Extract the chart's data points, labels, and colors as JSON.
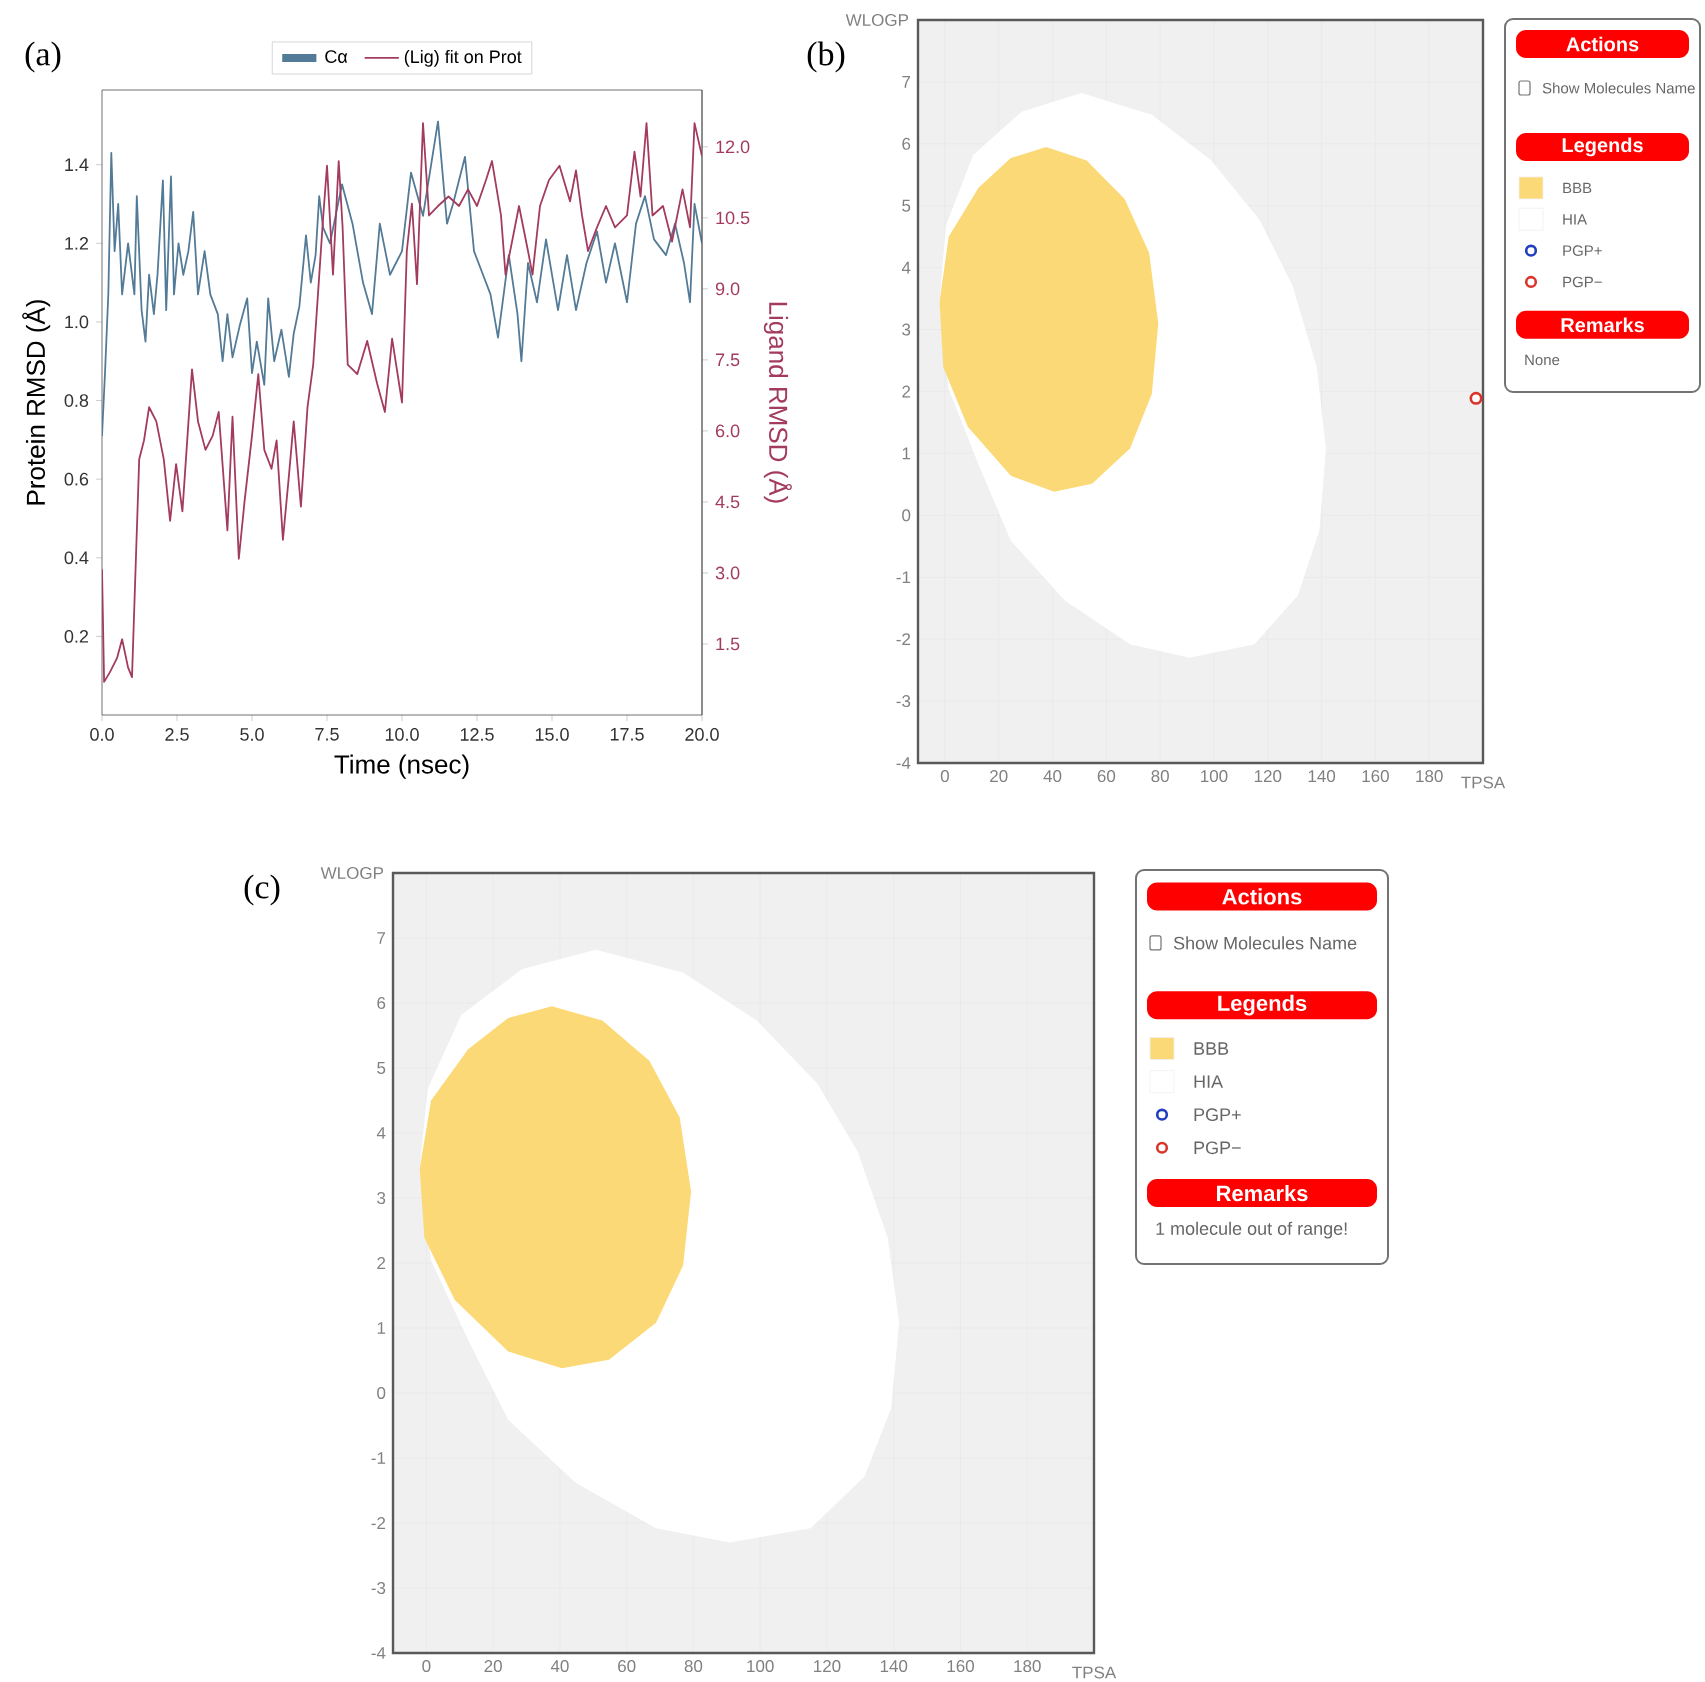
{
  "chart_data": [
    {
      "type": "line",
      "title": "(a)",
      "xlabel": "Time (nsec)",
      "ylabel": "Protein RMSD (Å)",
      "y2label": "Ligand RMSD (Å)",
      "legend": "top",
      "xlim": [
        0,
        20
      ],
      "ylim": [
        0,
        1.59
      ],
      "y2lim": [
        0,
        13.2
      ],
      "xticks": [
        {
          "value": 0,
          "label": "0.0"
        },
        2.5,
        {
          "value": 5,
          "label": "5.0"
        },
        7.5,
        {
          "value": 10,
          "label": "10.0"
        },
        12.5,
        {
          "value": 15,
          "label": "15.0"
        },
        17.5,
        {
          "value": 20,
          "label": "20.0"
        }
      ],
      "yticks": [
        0.2,
        0.4,
        0.6,
        0.8,
        {
          "value": 1,
          "label": "1.0"
        },
        1.2,
        1.4
      ],
      "y2ticks": [
        1.5,
        {
          "value": 3,
          "label": "3.0"
        },
        4.5,
        {
          "value": 6,
          "label": "6.0"
        },
        7.5,
        {
          "value": 9,
          "label": "9.0"
        },
        10.5,
        {
          "value": 12,
          "label": "12.0"
        }
      ],
      "series": [
        {
          "name": "Cα",
          "color": "#537b97",
          "x": [
            0,
            0.1,
            0.21,
            0.31,
            0.42,
            0.54,
            0.67,
            0.87,
            1.08,
            1.16,
            1.32,
            1.45,
            1.57,
            1.73,
            1.85,
            2.03,
            2.14,
            2.3,
            2.4,
            2.55,
            2.71,
            2.88,
            3.04,
            3.2,
            3.42,
            3.61,
            3.86,
            4.02,
            4.18,
            4.35,
            4.59,
            4.84,
            5.0,
            5.16,
            5.41,
            5.54,
            5.74,
            5.98,
            6.23,
            6.39,
            6.58,
            6.8,
            6.96,
            7.12,
            7.24,
            7.37,
            7.6,
            8.0,
            8.35,
            8.7,
            9.0,
            9.26,
            9.6,
            10.0,
            10.3,
            10.7,
            11.2,
            11.5,
            11.7,
            12.1,
            12.4,
            12.7,
            12.95,
            13.2,
            13.56,
            13.85,
            13.98,
            14.2,
            14.5,
            14.8,
            15.2,
            15.5,
            15.8,
            16.15,
            16.5,
            16.8,
            17.1,
            17.5,
            17.8,
            18.1,
            18.4,
            18.8,
            19.1,
            19.4,
            19.6,
            19.75,
            20
          ],
          "values": [
            0.71,
            0.87,
            1.07,
            1.43,
            1.18,
            1.3,
            1.07,
            1.2,
            1.07,
            1.32,
            1.03,
            0.95,
            1.12,
            1.02,
            1.12,
            1.36,
            1.03,
            1.37,
            1.07,
            1.2,
            1.12,
            1.18,
            1.28,
            1.07,
            1.18,
            1.07,
            1.02,
            0.9,
            1.02,
            0.91,
            0.99,
            1.06,
            0.87,
            0.95,
            0.84,
            1.06,
            0.9,
            0.98,
            0.86,
            0.97,
            1.04,
            1.22,
            1.1,
            1.17,
            1.32,
            1.24,
            1.2,
            1.35,
            1.25,
            1.1,
            1.02,
            1.25,
            1.12,
            1.18,
            1.38,
            1.27,
            1.51,
            1.25,
            1.3,
            1.42,
            1.18,
            1.12,
            1.07,
            0.96,
            1.17,
            1.02,
            0.9,
            1.15,
            1.05,
            1.21,
            1.03,
            1.17,
            1.03,
            1.15,
            1.23,
            1.1,
            1.2,
            1.05,
            1.25,
            1.32,
            1.21,
            1.17,
            1.25,
            1.15,
            1.05,
            1.3,
            1.2
          ]
        },
        {
          "name": "(Lig) fit on Prot",
          "color": "#a33b5e",
          "axis": "y2",
          "x": [
            0,
            0.07,
            0.26,
            0.5,
            0.67,
            0.87,
            1.0,
            1.13,
            1.24,
            1.4,
            1.57,
            1.81,
            2.06,
            2.27,
            2.47,
            2.68,
            3.0,
            3.2,
            3.45,
            3.69,
            3.89,
            4.18,
            4.35,
            4.56,
            4.75,
            5.0,
            5.21,
            5.41,
            5.65,
            5.82,
            6.03,
            6.23,
            6.39,
            6.63,
            6.85,
            7.04,
            7.2,
            7.37,
            7.5,
            7.7,
            7.89,
            8.02,
            8.19,
            8.51,
            8.84,
            9.17,
            9.43,
            9.67,
            10.0,
            10.16,
            10.33,
            10.5,
            10.7,
            10.9,
            11.2,
            11.55,
            11.9,
            12.2,
            12.5,
            12.8,
            13.0,
            13.3,
            13.45,
            13.7,
            13.9,
            14.2,
            14.35,
            14.6,
            14.9,
            15.25,
            15.6,
            15.8,
            16.0,
            16.2,
            16.5,
            16.8,
            17.1,
            17.5,
            17.75,
            17.95,
            18.15,
            18.35,
            18.7,
            19.0,
            19.35,
            19.6,
            19.75,
            20
          ],
          "values": [
            3.08,
            0.7,
            0.9,
            1.2,
            1.6,
            1.0,
            0.8,
            3.3,
            5.4,
            5.8,
            6.5,
            6.2,
            5.4,
            4.1,
            5.3,
            4.3,
            7.3,
            6.2,
            5.6,
            5.9,
            6.4,
            3.9,
            6.3,
            3.3,
            4.5,
            5.9,
            7.2,
            5.6,
            5.2,
            5.8,
            3.7,
            5.05,
            6.2,
            4.4,
            6.5,
            7.4,
            8.9,
            10.5,
            11.6,
            9.3,
            11.7,
            10.3,
            7.4,
            7.2,
            7.9,
            7.0,
            6.4,
            7.95,
            6.6,
            9.8,
            10.8,
            9.1,
            12.5,
            10.55,
            10.75,
            10.95,
            10.75,
            11.1,
            10.75,
            11.3,
            11.7,
            10.55,
            9.3,
            10.1,
            10.75,
            9.8,
            9.3,
            10.75,
            11.3,
            11.6,
            10.85,
            11.5,
            10.55,
            9.8,
            10.3,
            10.75,
            10.3,
            10.55,
            11.9,
            10.95,
            12.5,
            10.55,
            10.75,
            10.0,
            11.1,
            10.3,
            12.5,
            11.8
          ]
        }
      ]
    },
    {
      "type": "scatter",
      "title": "(b)",
      "xlabel": "TPSA",
      "ylabel": "WLOGP",
      "legend": "right",
      "legend_title": "Legends",
      "grid": true,
      "xlim": [
        -10,
        200
      ],
      "ylim": [
        -4,
        8
      ],
      "xticks": [
        0,
        20,
        40,
        60,
        80,
        100,
        120,
        140,
        160,
        180
      ],
      "yticks": [
        -4,
        -3,
        -2,
        -1,
        0,
        1,
        2,
        3,
        4,
        5,
        6,
        7
      ],
      "annotations": [
        "Actions",
        "Show Molecules Name",
        "Remarks",
        "None"
      ],
      "series": [
        {
          "name": "BBB",
          "type": "area",
          "color": "#fcd977",
          "x": [
            37.6,
            52.7,
            66.8,
            75.9,
            79.3,
            76.9,
            68.8,
            54.7,
            40.6,
            24.5,
            8.5,
            -0.6,
            -2.0,
            1.4,
            12.5,
            24.5
          ],
          "values": [
            5.95,
            5.73,
            5.11,
            4.24,
            3.1,
            1.96,
            1.08,
            0.51,
            0.38,
            0.64,
            1.43,
            2.39,
            3.45,
            4.5,
            5.29,
            5.77
          ]
        },
        {
          "name": "HIA",
          "type": "area",
          "color": "#ffffff",
          "x": [
            50.7,
            76.9,
            99.0,
            117.1,
            129.2,
            138.2,
            141.6,
            139.2,
            131.2,
            115.1,
            90.9,
            68.8,
            44.7,
            24.5,
            12.5,
            1.4,
            -2.0,
            0.4,
            10.5,
            28.6
          ],
          "values": [
            6.82,
            6.47,
            5.73,
            4.76,
            3.71,
            2.39,
            1.08,
            -0.24,
            -1.29,
            -2.08,
            -2.3,
            -2.08,
            -1.38,
            -0.41,
            0.82,
            2.04,
            3.45,
            4.68,
            5.82,
            6.52
          ]
        },
        {
          "name": "PGP+",
          "color": "#1f3fbf",
          "marker": "circle"
        },
        {
          "name": "PGP−",
          "color": "#d9352b",
          "marker": "circle",
          "x": [
            197.4
          ],
          "values": [
            1.89
          ]
        }
      ]
    },
    {
      "type": "scatter",
      "title": "(c)",
      "xlabel": "TPSA",
      "ylabel": "WLOGP",
      "legend": "right",
      "legend_title": "Legends",
      "grid": true,
      "xlim": [
        -10,
        200
      ],
      "ylim": [
        -4,
        8
      ],
      "xticks": [
        0,
        20,
        40,
        60,
        80,
        100,
        120,
        140,
        160,
        180
      ],
      "yticks": [
        -4,
        -3,
        -2,
        -1,
        0,
        1,
        2,
        3,
        4,
        5,
        6,
        7
      ],
      "annotations": [
        "Actions",
        "Show Molecules Name",
        "Remarks",
        "1 molecule out of range!"
      ],
      "series": [
        {
          "name": "BBB",
          "type": "area",
          "color": "#fcd977",
          "x": [
            37.6,
            52.7,
            66.8,
            75.9,
            79.3,
            76.9,
            68.8,
            54.7,
            40.6,
            24.5,
            8.5,
            -0.6,
            -2.0,
            1.4,
            12.5,
            24.5
          ],
          "values": [
            5.95,
            5.73,
            5.11,
            4.24,
            3.1,
            1.96,
            1.08,
            0.51,
            0.38,
            0.64,
            1.43,
            2.39,
            3.45,
            4.5,
            5.29,
            5.77
          ]
        },
        {
          "name": "HIA",
          "type": "area",
          "color": "#ffffff",
          "x": [
            50.7,
            76.9,
            99.0,
            117.1,
            129.2,
            138.2,
            141.6,
            139.2,
            131.2,
            115.1,
            90.9,
            68.8,
            44.7,
            24.5,
            12.5,
            1.4,
            -2.0,
            0.4,
            10.5,
            28.6
          ],
          "values": [
            6.82,
            6.47,
            5.73,
            4.76,
            3.71,
            2.39,
            1.08,
            -0.24,
            -1.29,
            -2.08,
            -2.3,
            -2.08,
            -1.38,
            -0.41,
            0.82,
            2.04,
            3.45,
            4.68,
            5.82,
            6.52
          ]
        },
        {
          "name": "PGP+",
          "color": "#1f3fbf",
          "marker": "circle"
        },
        {
          "name": "PGP−",
          "color": "#d9352b",
          "marker": "circle"
        }
      ]
    }
  ]
}
